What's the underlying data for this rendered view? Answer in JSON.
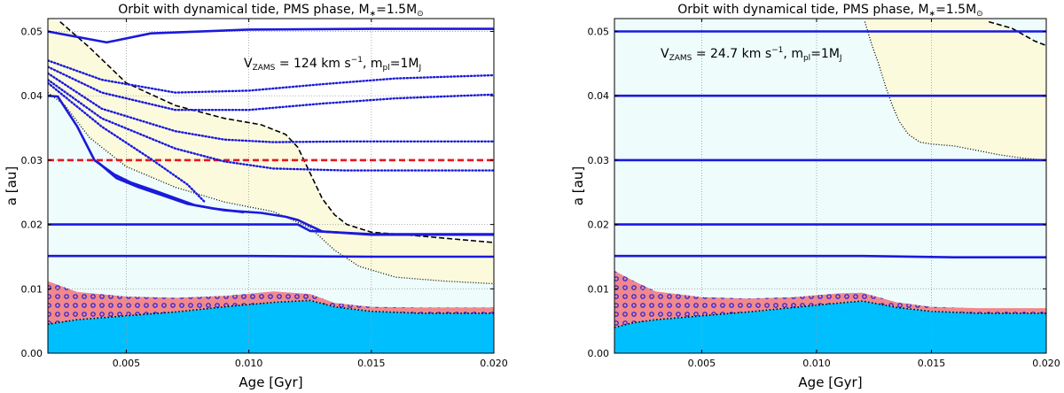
{
  "chart_data": [
    {
      "type": "line",
      "title": "Orbit with dynamical tide, PMS phase, M",
      "title_mass": "=1.5M",
      "xlabel": "Age [Gyr]",
      "ylabel": "a [au]",
      "xlim": [
        0.0018,
        0.02
      ],
      "ylim": [
        0.0,
        0.052
      ],
      "xticks": [
        0.005,
        0.01,
        0.015,
        0.02
      ],
      "xtick_labels": [
        "0.005",
        "0.010",
        "0.015",
        "0.020"
      ],
      "yticks": [
        0.0,
        0.01,
        0.02,
        0.03,
        0.04,
        0.05
      ],
      "ytick_labels": [
        "0.00",
        "0.01",
        "0.02",
        "0.03",
        "0.04",
        "0.05"
      ],
      "grid": true,
      "annotation": {
        "v_label": "V",
        "v_sub": "ZAMS",
        "v_value": " = 124 km s",
        "v_exp": "−1",
        "sep": ", m",
        "m_sub": "pl",
        "m_value": "=1M",
        "m_unit_sub": "J"
      },
      "colors": {
        "blue": "#1a1adb",
        "red": "#e8151b",
        "yellow_region": "#fcfadd",
        "cyan_region": "#eefcfc",
        "star": "#00bfff",
        "envelope": "#f0888e"
      },
      "series": [
        {
          "name": "orbit-0.05",
          "style": "solid",
          "x": [
            0.0018,
            0.0042,
            0.006,
            0.01,
            0.015,
            0.02
          ],
          "y": [
            0.05,
            0.0483,
            0.0497,
            0.0503,
            0.0504,
            0.0504
          ]
        },
        {
          "name": "orbit-0.04",
          "style": "solid",
          "x": [
            0.0018,
            0.0022,
            0.003,
            0.0037,
            0.0045,
            0.0052,
            0.0062,
            0.007,
            0.0078,
            0.009,
            0.0105,
            0.0115,
            0.012,
            0.013,
            0.015,
            0.02
          ],
          "y": [
            0.04,
            0.0399,
            0.0352,
            0.03,
            0.0278,
            0.0265,
            0.0252,
            0.0241,
            0.023,
            0.0222,
            0.0218,
            0.0212,
            0.0207,
            0.0189,
            0.0184,
            0.0184
          ]
        },
        {
          "name": "orbit-0.04-branch",
          "style": "solid",
          "x": [
            0.0038,
            0.0046,
            0.0055,
            0.0065,
            0.0075,
            0.0085,
            0.0098
          ],
          "y": [
            0.0298,
            0.0272,
            0.0258,
            0.0245,
            0.0232,
            0.0225,
            0.0219
          ]
        },
        {
          "name": "orbit-0.02",
          "style": "solid",
          "x": [
            0.0018,
            0.012,
            0.0125,
            0.015,
            0.02
          ],
          "y": [
            0.02,
            0.02,
            0.019,
            0.0185,
            0.0185
          ]
        },
        {
          "name": "orbit-0.015",
          "style": "solid",
          "x": [
            0.0018,
            0.01,
            0.015,
            0.02
          ],
          "y": [
            0.0151,
            0.0151,
            0.015,
            0.015
          ]
        },
        {
          "name": "limit-red",
          "style": "dashed-red",
          "x": [
            0.0018,
            0.02
          ],
          "y": [
            0.03,
            0.03
          ]
        },
        {
          "name": "dotted-1",
          "style": "dotted",
          "x": [
            0.0018,
            0.004,
            0.007,
            0.01,
            0.013,
            0.016,
            0.02
          ],
          "y": [
            0.0455,
            0.0425,
            0.0405,
            0.0408,
            0.0418,
            0.0427,
            0.0432
          ]
        },
        {
          "name": "dotted-2",
          "style": "dotted",
          "x": [
            0.0018,
            0.004,
            0.007,
            0.01,
            0.013,
            0.016,
            0.02
          ],
          "y": [
            0.0445,
            0.0405,
            0.0378,
            0.0378,
            0.0388,
            0.0396,
            0.0402
          ]
        },
        {
          "name": "dotted-3",
          "style": "dotted",
          "x": [
            0.0018,
            0.004,
            0.007,
            0.009,
            0.011,
            0.014,
            0.02
          ],
          "y": [
            0.0435,
            0.038,
            0.0345,
            0.0332,
            0.0328,
            0.0329,
            0.0329
          ]
        },
        {
          "name": "dotted-4",
          "style": "dotted",
          "x": [
            0.0018,
            0.004,
            0.007,
            0.009,
            0.011,
            0.014,
            0.02
          ],
          "y": [
            0.0425,
            0.0365,
            0.0318,
            0.0298,
            0.0287,
            0.0284,
            0.0284
          ]
        },
        {
          "name": "dotted-5",
          "style": "dotted",
          "x": [
            0.0018,
            0.004,
            0.006,
            0.0075,
            0.0082
          ],
          "y": [
            0.042,
            0.0352,
            0.0302,
            0.0262,
            0.0235
          ]
        }
      ],
      "corotation_upper": {
        "x": [
          0.0023,
          0.0035,
          0.005,
          0.007,
          0.009,
          0.0105,
          0.0115,
          0.012,
          0.0125,
          0.013,
          0.0135,
          0.014,
          0.015,
          0.017,
          0.02
        ],
        "y": [
          0.0515,
          0.0475,
          0.042,
          0.0385,
          0.0365,
          0.0355,
          0.034,
          0.032,
          0.028,
          0.024,
          0.0215,
          0.02,
          0.0188,
          0.0182,
          0.0172
        ]
      },
      "corotation_lower": {
        "x": [
          0.0018,
          0.0025,
          0.0035,
          0.005,
          0.007,
          0.009,
          0.011,
          0.0125,
          0.0135,
          0.0145,
          0.016,
          0.018,
          0.02
        ],
        "y": [
          0.0405,
          0.0385,
          0.0335,
          0.029,
          0.0258,
          0.0235,
          0.022,
          0.0195,
          0.016,
          0.0135,
          0.0118,
          0.0112,
          0.0108
        ]
      },
      "star_envelope": {
        "x": [
          0.0018,
          0.003,
          0.005,
          0.007,
          0.009,
          0.011,
          0.0125,
          0.0135,
          0.015,
          0.017,
          0.02
        ],
        "y": [
          0.0112,
          0.0095,
          0.0088,
          0.0086,
          0.0089,
          0.0096,
          0.0092,
          0.0078,
          0.0072,
          0.0071,
          0.0071
        ]
      },
      "star_core": {
        "x": [
          0.0018,
          0.003,
          0.005,
          0.007,
          0.009,
          0.011,
          0.0125,
          0.0135,
          0.015,
          0.017,
          0.02
        ],
        "y": [
          0.0045,
          0.0052,
          0.0058,
          0.0064,
          0.0072,
          0.0079,
          0.0082,
          0.0072,
          0.0065,
          0.0062,
          0.0062
        ]
      }
    },
    {
      "type": "line",
      "title": "Orbit with dynamical tide, PMS phase, M",
      "title_mass": "=1.5M",
      "xlabel": "Age [Gyr]",
      "ylabel": "a [au]",
      "xlim": [
        0.0012,
        0.02
      ],
      "ylim": [
        0.0,
        0.052
      ],
      "xticks": [
        0.005,
        0.01,
        0.015,
        0.02
      ],
      "xtick_labels": [
        "0.005",
        "0.010",
        "0.015",
        "0.020"
      ],
      "yticks": [
        0.0,
        0.01,
        0.02,
        0.03,
        0.04,
        0.05
      ],
      "ytick_labels": [
        "0.00",
        "0.01",
        "0.02",
        "0.03",
        "0.04",
        "0.05"
      ],
      "grid": true,
      "annotation": {
        "v_label": "V",
        "v_sub": "ZAMS",
        "v_value": " = 24.7 km s",
        "v_exp": "−1",
        "sep": ", m",
        "m_sub": "pl",
        "m_value": "=1M",
        "m_unit_sub": "J"
      },
      "colors": {
        "blue": "#1a1adb",
        "red": "#e8151b",
        "yellow_region": "#fcfadd",
        "cyan_region": "#eefcfc",
        "star": "#00bfff",
        "envelope": "#f0888e"
      },
      "series": [
        {
          "name": "orbit-0.05",
          "style": "solid",
          "x": [
            0.0012,
            0.02
          ],
          "y": [
            0.05,
            0.05
          ]
        },
        {
          "name": "orbit-0.04",
          "style": "solid",
          "x": [
            0.0012,
            0.02
          ],
          "y": [
            0.04,
            0.04
          ]
        },
        {
          "name": "orbit-0.03",
          "style": "solid",
          "x": [
            0.0012,
            0.02
          ],
          "y": [
            0.03,
            0.03
          ]
        },
        {
          "name": "orbit-0.02",
          "style": "solid",
          "x": [
            0.0012,
            0.02
          ],
          "y": [
            0.02,
            0.02
          ]
        },
        {
          "name": "orbit-0.015",
          "style": "solid",
          "x": [
            0.0012,
            0.012,
            0.016,
            0.02
          ],
          "y": [
            0.0151,
            0.0151,
            0.0149,
            0.0149
          ]
        }
      ],
      "corotation_upper": {
        "x": [
          0.0175,
          0.0185,
          0.019,
          0.0195,
          0.02
        ],
        "y": [
          0.0515,
          0.0505,
          0.0495,
          0.0485,
          0.0478
        ]
      },
      "corotation_lower": {
        "x": [
          0.0121,
          0.0124,
          0.0127,
          0.013,
          0.0133,
          0.0136,
          0.014,
          0.0145,
          0.015,
          0.016,
          0.017,
          0.018,
          0.019,
          0.02
        ],
        "y": [
          0.0515,
          0.048,
          0.045,
          0.0415,
          0.0385,
          0.036,
          0.034,
          0.0328,
          0.0325,
          0.0322,
          0.0315,
          0.0308,
          0.0303,
          0.03
        ]
      },
      "star_envelope": {
        "x": [
          0.0012,
          0.002,
          0.003,
          0.005,
          0.007,
          0.009,
          0.011,
          0.012,
          0.0135,
          0.015,
          0.017,
          0.02
        ],
        "y": [
          0.0128,
          0.0113,
          0.0096,
          0.0087,
          0.0085,
          0.0087,
          0.0093,
          0.0094,
          0.0079,
          0.0072,
          0.007,
          0.007
        ]
      },
      "star_core": {
        "x": [
          0.0012,
          0.002,
          0.003,
          0.005,
          0.007,
          0.009,
          0.011,
          0.012,
          0.0135,
          0.015,
          0.017,
          0.02
        ],
        "y": [
          0.004,
          0.0047,
          0.0052,
          0.0058,
          0.0064,
          0.0071,
          0.0078,
          0.0081,
          0.0071,
          0.0065,
          0.0062,
          0.0062
        ]
      }
    }
  ]
}
